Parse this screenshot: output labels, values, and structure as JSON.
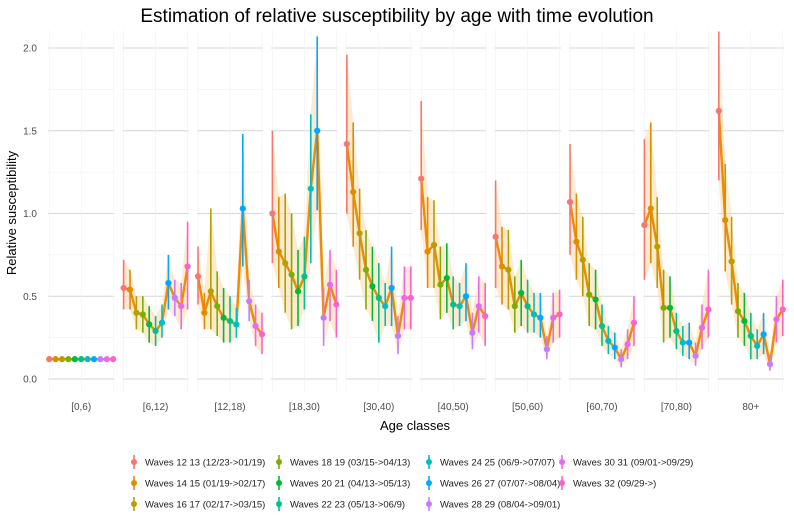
{
  "chart_data": {
    "type": "line",
    "title": "Estimation of relative susceptibility by age with time evolution",
    "xlabel": "Age classes",
    "ylabel": "Relative susceptibility",
    "ylim": [
      0,
      2.1
    ],
    "y_ticks": [
      "0.0",
      "0.5",
      "1.0",
      "1.5",
      "2.0"
    ],
    "grid": true,
    "legend_position": "bottom",
    "categories": [
      "[0,6)",
      "[6,12)",
      "[12,18)",
      "[18,30)",
      "[30,40)",
      "[40,50)",
      "[50,60)",
      "[60,70)",
      "[70,80)",
      "80+"
    ],
    "series": [
      {
        "name": "Waves 12 13 (12/23->01/19)",
        "color": "#F8766D",
        "values": [
          0.12,
          0.55,
          0.62,
          1.0,
          1.42,
          1.21,
          0.86,
          1.07,
          0.93,
          1.62
        ],
        "lower": [
          0.12,
          0.42,
          0.45,
          0.7,
          1.0,
          0.9,
          0.55,
          0.75,
          0.6,
          1.2
        ],
        "upper": [
          0.12,
          0.72,
          0.8,
          1.5,
          1.96,
          1.68,
          1.2,
          1.42,
          1.45,
          2.1
        ]
      },
      {
        "name": "Waves 14 15 (01/19->02/17)",
        "color": "#DE8C00",
        "values": [
          0.12,
          0.54,
          0.4,
          0.77,
          1.13,
          0.77,
          0.68,
          0.83,
          1.03,
          0.96
        ],
        "lower": [
          0.12,
          0.42,
          0.3,
          0.55,
          0.8,
          0.55,
          0.45,
          0.6,
          0.7,
          0.65
        ],
        "upper": [
          0.12,
          0.66,
          0.52,
          1.1,
          1.55,
          1.1,
          0.92,
          1.12,
          1.55,
          1.3
        ]
      },
      {
        "name": "Waves 16 17 (02/17->03/15)",
        "color": "#B79F00",
        "values": [
          0.12,
          0.4,
          0.53,
          0.7,
          0.88,
          0.81,
          0.66,
          0.72,
          0.8,
          0.71
        ],
        "lower": [
          0.12,
          0.3,
          0.3,
          0.4,
          0.6,
          0.55,
          0.42,
          0.5,
          0.55,
          0.45
        ],
        "upper": [
          0.12,
          0.5,
          1.03,
          1.12,
          1.15,
          1.08,
          0.9,
          0.98,
          1.1,
          0.98
        ]
      },
      {
        "name": "Waves 18 19 (03/15->04/13)",
        "color": "#7CAE00",
        "values": [
          0.12,
          0.39,
          0.44,
          0.63,
          0.66,
          0.57,
          0.44,
          0.51,
          0.43,
          0.41
        ],
        "lower": [
          0.12,
          0.28,
          0.26,
          0.3,
          0.42,
          0.36,
          0.28,
          0.32,
          0.22,
          0.25
        ],
        "upper": [
          0.12,
          0.5,
          0.65,
          1.0,
          0.9,
          0.8,
          0.62,
          0.7,
          0.66,
          0.58
        ]
      },
      {
        "name": "Waves 20 21 (04/13->05/13)",
        "color": "#00BA38",
        "values": [
          0.12,
          0.33,
          0.37,
          0.53,
          0.56,
          0.61,
          0.52,
          0.48,
          0.43,
          0.35
        ],
        "lower": [
          0.12,
          0.22,
          0.22,
          0.32,
          0.35,
          0.4,
          0.32,
          0.3,
          0.25,
          0.2
        ],
        "upper": [
          0.12,
          0.44,
          0.55,
          0.78,
          0.8,
          0.82,
          0.72,
          0.66,
          0.62,
          0.52
        ]
      },
      {
        "name": "Waves 22 23 (05/13->06/9)",
        "color": "#00C08B",
        "values": [
          0.12,
          0.29,
          0.35,
          0.62,
          0.49,
          0.45,
          0.44,
          0.32,
          0.29,
          0.26
        ],
        "lower": [
          0.12,
          0.2,
          0.22,
          0.42,
          0.22,
          0.3,
          0.28,
          0.2,
          0.18,
          0.12
        ],
        "upper": [
          0.12,
          0.38,
          0.5,
          0.86,
          0.7,
          0.62,
          0.6,
          0.45,
          0.4,
          0.4
        ]
      },
      {
        "name": "Waves 24 25 (06/9->07/07)",
        "color": "#00BFC4",
        "values": [
          0.12,
          0.34,
          0.33,
          1.15,
          0.44,
          0.44,
          0.39,
          0.23,
          0.22,
          0.2
        ],
        "lower": [
          0.12,
          0.25,
          0.25,
          0.7,
          0.32,
          0.32,
          0.28,
          0.15,
          0.14,
          0.12
        ],
        "upper": [
          0.12,
          0.45,
          0.43,
          1.6,
          0.58,
          0.58,
          0.52,
          0.32,
          0.32,
          0.3
        ]
      },
      {
        "name": "Waves 26 27 (07/07->08/04)",
        "color": "#00A9FF",
        "values": [
          0.12,
          0.58,
          1.03,
          1.5,
          0.55,
          0.5,
          0.37,
          0.19,
          0.22,
          0.27
        ],
        "lower": [
          0.12,
          0.42,
          0.68,
          1.02,
          0.32,
          0.35,
          0.25,
          0.12,
          0.12,
          0.15
        ],
        "upper": [
          0.12,
          0.75,
          1.48,
          2.07,
          0.8,
          0.7,
          0.52,
          0.28,
          0.34,
          0.4
        ]
      },
      {
        "name": "Waves 28 29 (08/04->09/01)",
        "color": "#C77CFF",
        "values": [
          0.12,
          0.49,
          0.47,
          0.37,
          0.26,
          0.28,
          0.18,
          0.12,
          0.14,
          0.09
        ],
        "lower": [
          0.12,
          0.38,
          0.35,
          0.2,
          0.15,
          0.18,
          0.12,
          0.07,
          0.08,
          0.05
        ],
        "upper": [
          0.12,
          0.6,
          0.6,
          0.55,
          0.38,
          0.4,
          0.26,
          0.18,
          0.22,
          0.15
        ]
      },
      {
        "name": "Waves 30 31 (09/01->09/29)",
        "color": "#ED68ED",
        "values": [
          0.12,
          0.44,
          0.32,
          0.57,
          0.49,
          0.44,
          0.37,
          0.21,
          0.31,
          0.36
        ],
        "lower": [
          0.12,
          0.3,
          0.2,
          0.35,
          0.3,
          0.28,
          0.22,
          0.12,
          0.18,
          0.22
        ],
        "upper": [
          0.12,
          0.58,
          0.45,
          0.78,
          0.68,
          0.62,
          0.52,
          0.3,
          0.45,
          0.5
        ]
      },
      {
        "name": "Waves 32 (09/29->)",
        "color": "#FF61CC",
        "values": [
          0.12,
          0.68,
          0.27,
          0.45,
          0.49,
          0.38,
          0.39,
          0.34,
          0.42,
          0.42
        ],
        "lower": [
          0.12,
          0.42,
          0.15,
          0.25,
          0.3,
          0.2,
          0.25,
          0.2,
          0.25,
          0.26
        ],
        "upper": [
          0.12,
          0.95,
          0.4,
          0.66,
          0.68,
          0.58,
          0.54,
          0.5,
          0.66,
          0.6
        ]
      }
    ],
    "trend_line": {
      "color": "#F08A00"
    },
    "ribbon": {
      "color": "#FCD9A8"
    }
  }
}
